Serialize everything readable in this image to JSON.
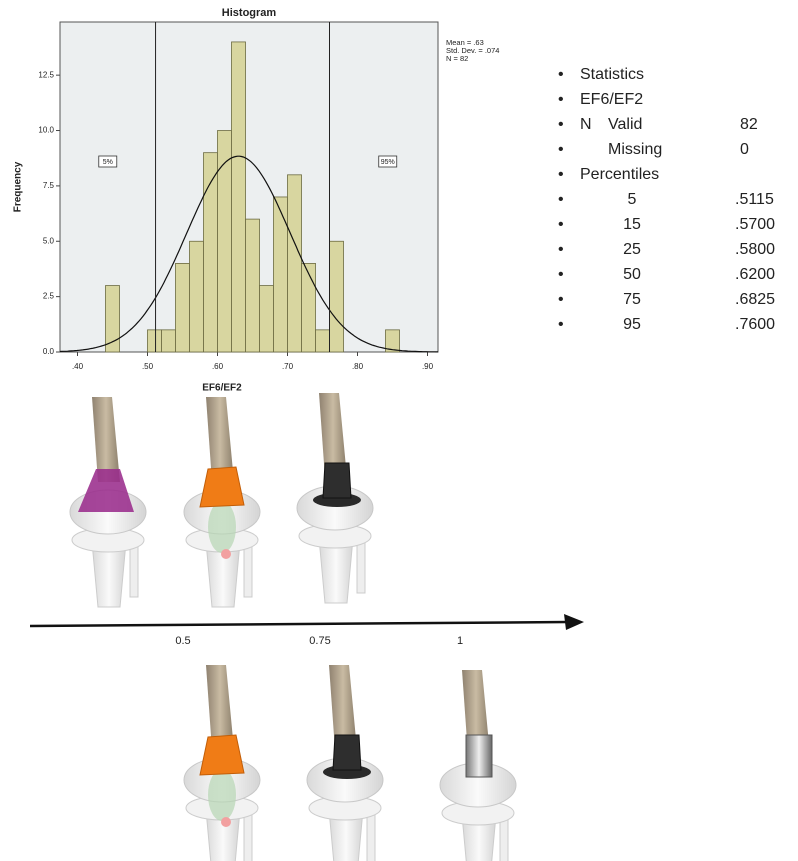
{
  "chart_data": {
    "type": "histogram",
    "title": "Histogram",
    "x_label": "EF6/EF2",
    "y_label": "Frequency",
    "bins": [
      0.44,
      0.46,
      0.48,
      0.5,
      0.52,
      0.54,
      0.56,
      0.58,
      0.6,
      0.62,
      0.64,
      0.66,
      0.68,
      0.7,
      0.72,
      0.74,
      0.76,
      0.78,
      0.8,
      0.82,
      0.84,
      0.86
    ],
    "values": [
      3,
      0,
      0,
      1,
      1,
      4,
      5,
      9,
      10,
      14,
      6,
      3,
      7,
      8,
      4,
      1,
      5,
      0,
      0,
      0,
      1
    ],
    "color": "#d8d6a0",
    "xlim": [
      0.375,
      0.915
    ],
    "xticks": [
      {
        "value": 0.4,
        "label": ".40"
      },
      {
        "value": 0.5,
        "label": ".50"
      },
      {
        "value": 0.6,
        "label": ".60"
      },
      {
        "value": 0.7,
        "label": ".70"
      },
      {
        "value": 0.8,
        "label": ".80"
      },
      {
        "value": 0.9,
        "label": ".90"
      }
    ],
    "ylim": [
      0,
      14.9
    ],
    "yticks": [
      {
        "value": 0,
        "label": "0.0"
      },
      2.5,
      {
        "value": 5,
        "label": "5.0"
      },
      7.5,
      {
        "value": 10,
        "label": "10.0"
      },
      12.5
    ],
    "reference_lines": [
      {
        "value": 0.5115,
        "label": "5%"
      },
      {
        "value": 0.76,
        "label": "95%"
      }
    ],
    "normal_curve": {
      "mean": 0.63,
      "sd": 0.074,
      "n": 82
    },
    "stats_text": [
      "Mean = .63",
      "Std. Dev. = .074",
      "N = 82"
    ]
  },
  "statistics": {
    "title": "Statistics",
    "variable": "EF6/EF2",
    "n": {
      "label": "N",
      "valid": {
        "label": "Valid",
        "value": 82
      },
      "missing": {
        "label": "Missing",
        "value": 0
      }
    },
    "percentiles": {
      "label": "Percentiles",
      "rows": [
        {
          "p": 5,
          "value": ".5115"
        },
        {
          "p": 15,
          "value": ".5700"
        },
        {
          "p": 25,
          "value": ".5800"
        },
        {
          "p": 50,
          "value": ".6200"
        },
        {
          "p": 75,
          "value": ".6825"
        },
        {
          "p": 95,
          "value": ".7600"
        }
      ]
    }
  },
  "scale": {
    "labels": [
      "0.5",
      "0.75",
      "1"
    ]
  }
}
